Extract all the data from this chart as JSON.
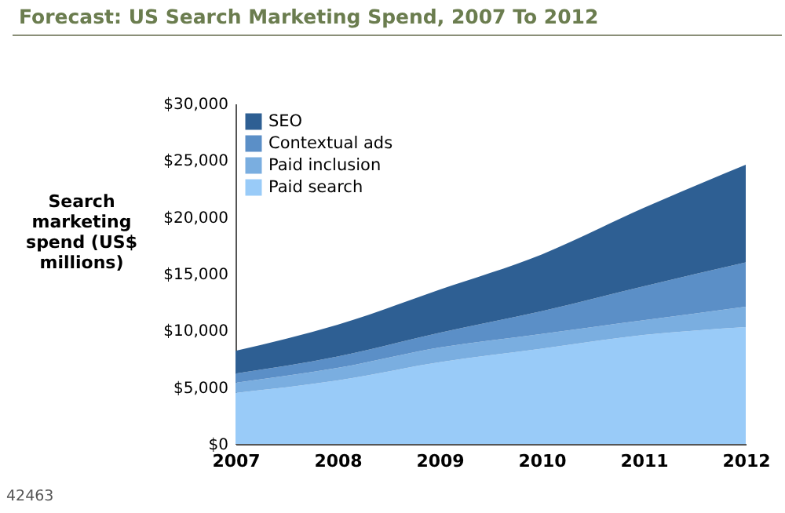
{
  "chart_data": {
    "type": "area",
    "stacked": true,
    "title": "Forecast: US Search Marketing Spend, 2007 To 2012",
    "ylabel": "Search marketing spend (US$ millions)",
    "categories": [
      "2007",
      "2008",
      "2009",
      "2010",
      "2011",
      "2012"
    ],
    "series": [
      {
        "name": "Paid search",
        "color": "#99cbf8",
        "values": [
          4500,
          5600,
          7200,
          8400,
          9600,
          10300
        ]
      },
      {
        "name": "Paid inclusion",
        "color": "#7aaee0",
        "values": [
          900,
          1100,
          1300,
          1300,
          1300,
          1800
        ]
      },
      {
        "name": "Contextual ads",
        "color": "#5b8fc7",
        "values": [
          800,
          1000,
          1300,
          2000,
          3000,
          3900
        ]
      },
      {
        "name": "SEO",
        "color": "#2e5f93",
        "values": [
          2000,
          2800,
          3800,
          5000,
          6900,
          8600
        ]
      }
    ],
    "ylim": [
      0,
      30000
    ],
    "yticks": [
      {
        "value": 0,
        "label": "$0"
      },
      {
        "value": 5000,
        "label": "$5,000"
      },
      {
        "value": 10000,
        "label": "$10,000"
      },
      {
        "value": 15000,
        "label": "$15,000"
      },
      {
        "value": 20000,
        "label": "$20,000"
      },
      {
        "value": 25000,
        "label": "$25,000"
      },
      {
        "value": 30000,
        "label": "$30,000"
      }
    ],
    "grid": false,
    "legend": "top left",
    "annotations": [
      "42463"
    ]
  }
}
